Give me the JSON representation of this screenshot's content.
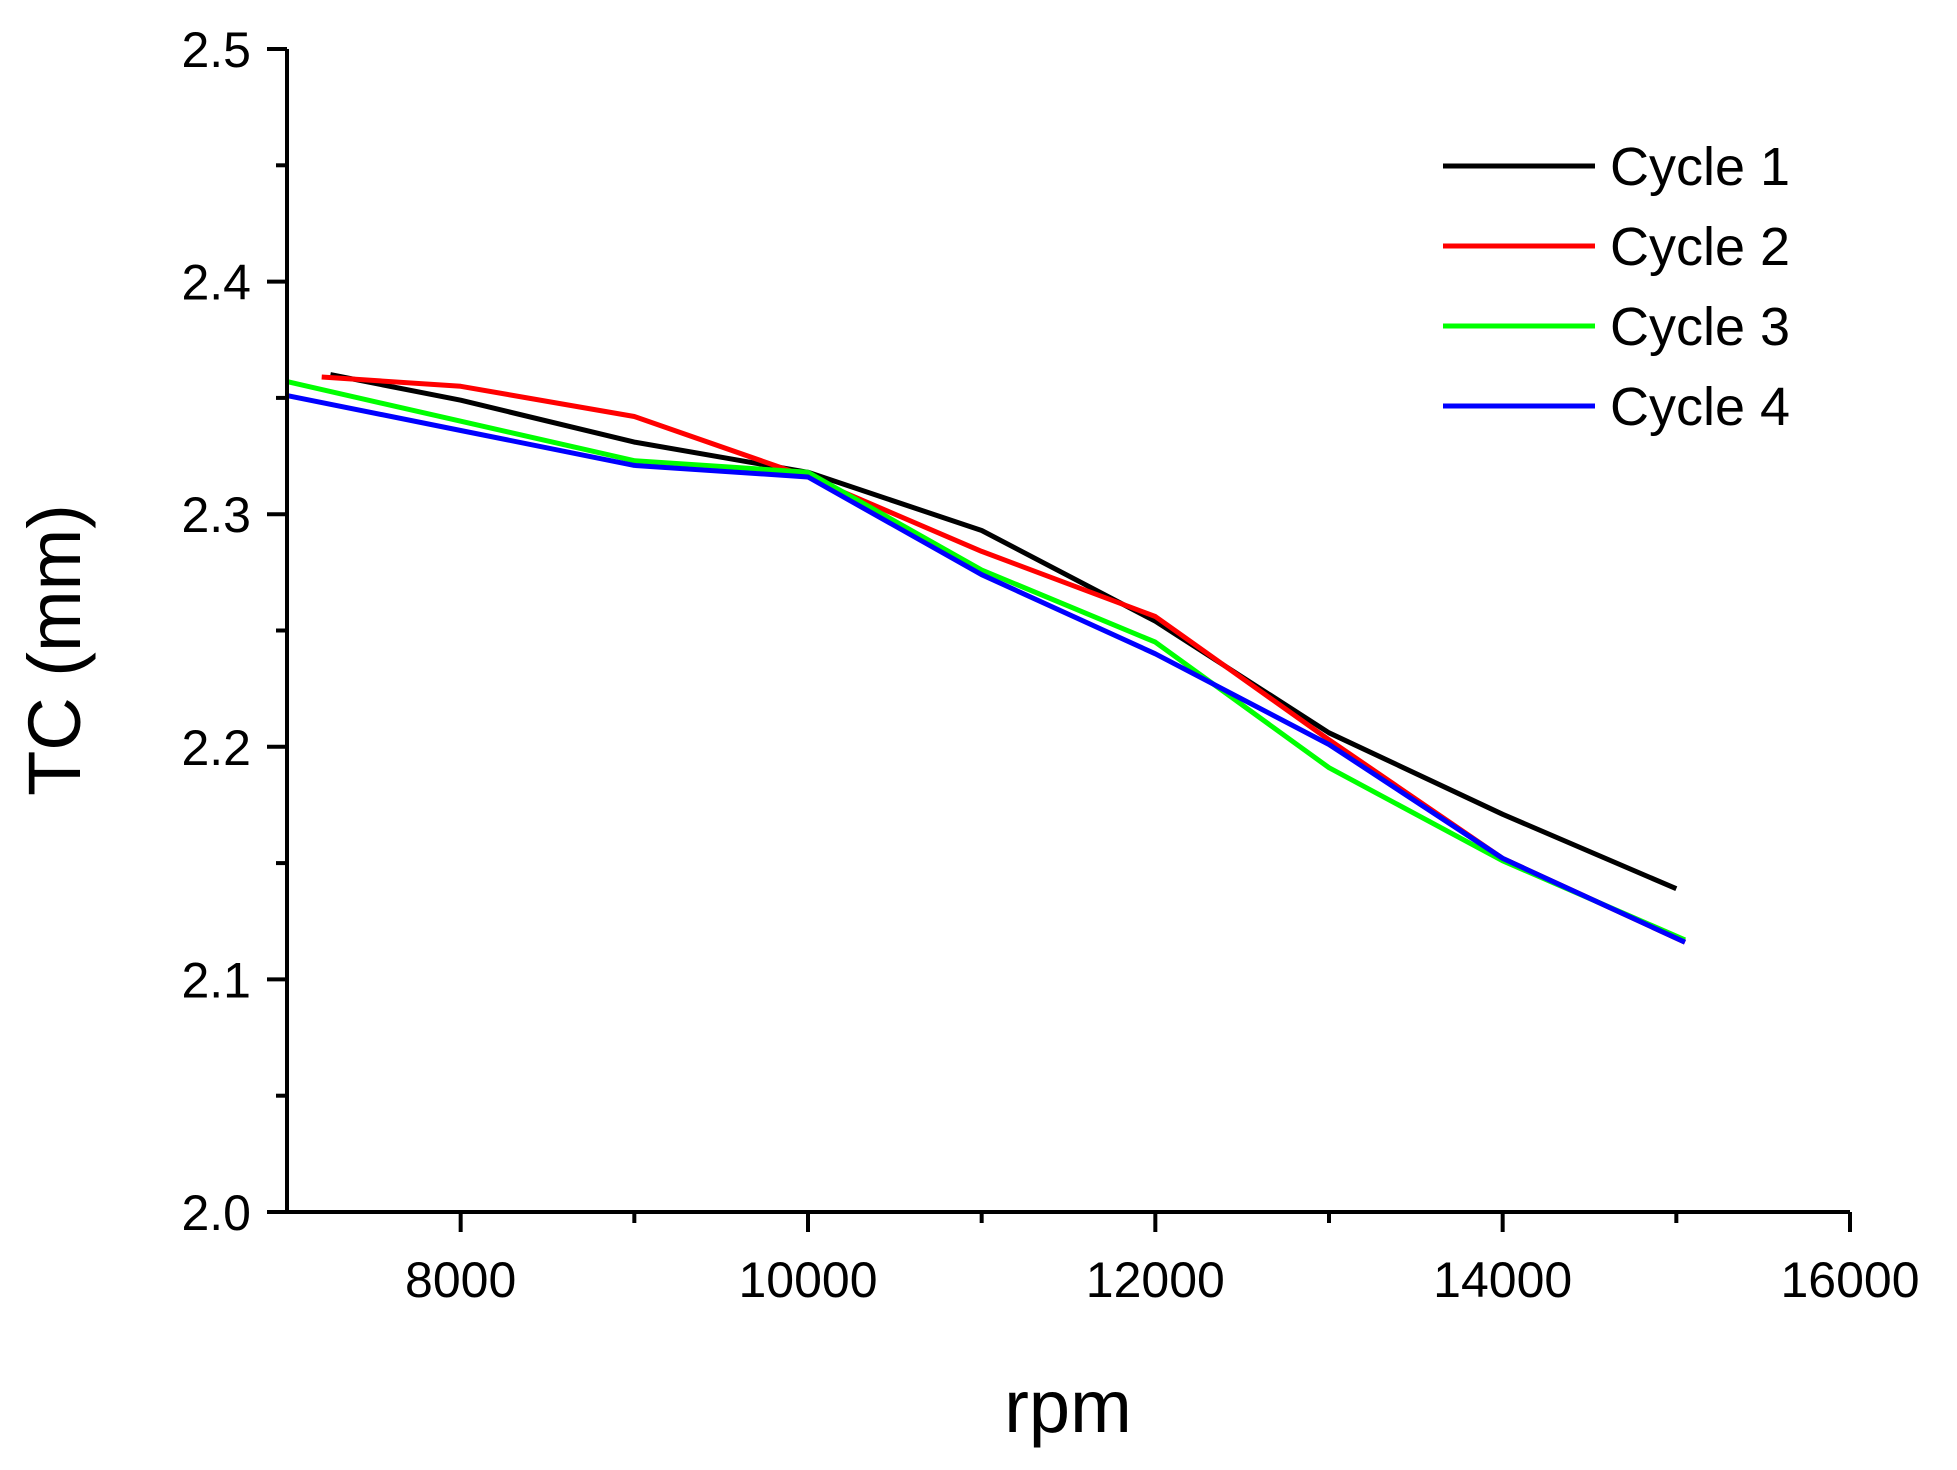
{
  "chart_data": {
    "type": "line",
    "title": "",
    "xlabel": "rpm",
    "ylabel": "TC (mm)",
    "xlim": [
      7000,
      16000
    ],
    "ylim": [
      2.0,
      2.5
    ],
    "x_ticks": [
      8000,
      10000,
      12000,
      14000,
      16000
    ],
    "x_tick_labels": [
      "8000",
      "10000",
      "12000",
      "14000",
      "16000"
    ],
    "y_ticks": [
      2.0,
      2.1,
      2.2,
      2.3,
      2.4,
      2.5
    ],
    "y_tick_labels": [
      "2.0",
      "2.1",
      "2.2",
      "2.3",
      "2.4",
      "2.5"
    ],
    "grid": false,
    "legend_position": "top-right",
    "series": [
      {
        "name": "Cycle 1",
        "color": "#000000",
        "x": [
          7250,
          8000,
          9000,
          10000,
          11000,
          12000,
          13000,
          14000,
          15000
        ],
        "y": [
          2.36,
          2.349,
          2.331,
          2.318,
          2.293,
          2.254,
          2.206,
          2.171,
          2.139
        ]
      },
      {
        "name": "Cycle 2",
        "color": "#ff0000",
        "x": [
          7200,
          8000,
          9000,
          10000,
          11000,
          12000,
          13000,
          14000,
          15050
        ],
        "y": [
          2.359,
          2.355,
          2.342,
          2.316,
          2.284,
          2.256,
          2.203,
          2.152,
          2.116
        ]
      },
      {
        "name": "Cycle 3",
        "color": "#00ff00",
        "x": [
          7000,
          8000,
          9000,
          10000,
          11000,
          12000,
          13000,
          14000,
          15050
        ],
        "y": [
          2.357,
          2.34,
          2.323,
          2.318,
          2.276,
          2.245,
          2.191,
          2.151,
          2.117
        ]
      },
      {
        "name": "Cycle 4",
        "color": "#0000ff",
        "x": [
          7000,
          8000,
          9000,
          10000,
          11000,
          12000,
          13000,
          14000,
          15050
        ],
        "y": [
          2.351,
          2.336,
          2.321,
          2.316,
          2.274,
          2.24,
          2.201,
          2.152,
          2.116
        ]
      }
    ]
  }
}
